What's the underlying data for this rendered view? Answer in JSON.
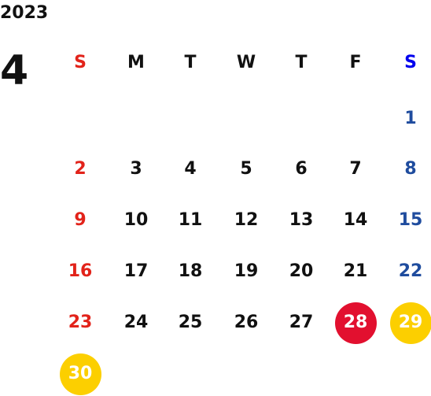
{
  "year": "2023",
  "month": "4",
  "colors": {
    "sunday": "#e2231a",
    "saturday_header": "#0000ee",
    "saturday": "#1f4c9e",
    "weekday": "#111111",
    "holiday_red": "#e2102f",
    "holiday_yellow": "#fccf00"
  },
  "weekdays": [
    "S",
    "M",
    "T",
    "W",
    "T",
    "F",
    "S"
  ],
  "weeks": [
    [
      "",
      "",
      "",
      "",
      "",
      "",
      "1"
    ],
    [
      "2",
      "3",
      "4",
      "5",
      "6",
      "7",
      "8"
    ],
    [
      "9",
      "10",
      "11",
      "12",
      "13",
      "14",
      "15"
    ],
    [
      "16",
      "17",
      "18",
      "19",
      "20",
      "21",
      "22"
    ],
    [
      "23",
      "24",
      "25",
      "26",
      "27",
      "28",
      "29"
    ],
    [
      "30",
      "",
      "",
      "",
      "",
      "",
      ""
    ]
  ],
  "highlights": [
    {
      "day": "28",
      "color": "#e2102f"
    },
    {
      "day": "29",
      "color": "#fccf00"
    },
    {
      "day": "30",
      "color": "#fccf00"
    }
  ]
}
